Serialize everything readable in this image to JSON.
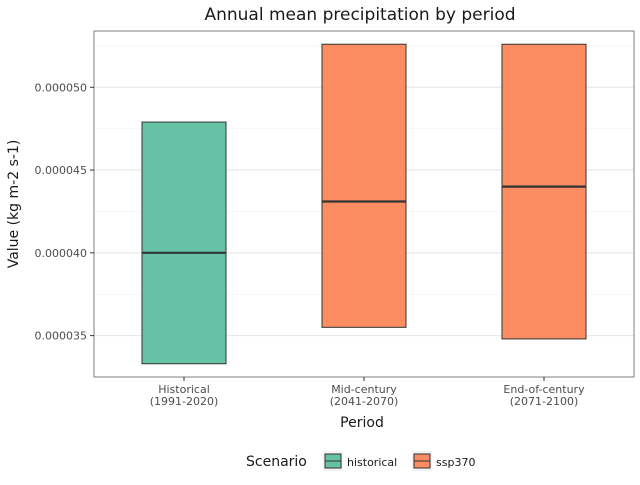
{
  "chart_data": {
    "type": "box",
    "title": "Annual mean precipitation by period",
    "xlabel": "Period",
    "ylabel": "Value (kg m-2 s-1)",
    "ylim": [
      3.25e-05,
      5.34e-05
    ],
    "yticks": [
      3.5e-05,
      4e-05,
      4.5e-05,
      5e-05
    ],
    "ytick_labels": [
      "0.000035",
      "0.000040",
      "0.000045",
      "0.000050"
    ],
    "grid": true,
    "categories": [
      {
        "line1": "Historical",
        "line2": "(1991-2020)"
      },
      {
        "line1": "Mid-century",
        "line2": "(2041-2070)"
      },
      {
        "line1": "End-of-century",
        "line2": "(2071-2100)"
      }
    ],
    "boxes": [
      {
        "category": 0,
        "scenario": "historical",
        "q1": 3.33e-05,
        "median": 4e-05,
        "q3": 4.79e-05
      },
      {
        "category": 1,
        "scenario": "ssp370",
        "q1": 3.55e-05,
        "median": 4.31e-05,
        "q3": 5.26e-05
      },
      {
        "category": 2,
        "scenario": "ssp370",
        "q1": 3.48e-05,
        "median": 4.4e-05,
        "q3": 5.26e-05
      }
    ],
    "legend": {
      "title": "Scenario",
      "position": "bottom",
      "items": [
        {
          "key": "historical",
          "label": "historical",
          "color": "#66c2a5"
        },
        {
          "key": "ssp370",
          "label": "ssp370",
          "color": "#fc8d62"
        }
      ]
    }
  }
}
